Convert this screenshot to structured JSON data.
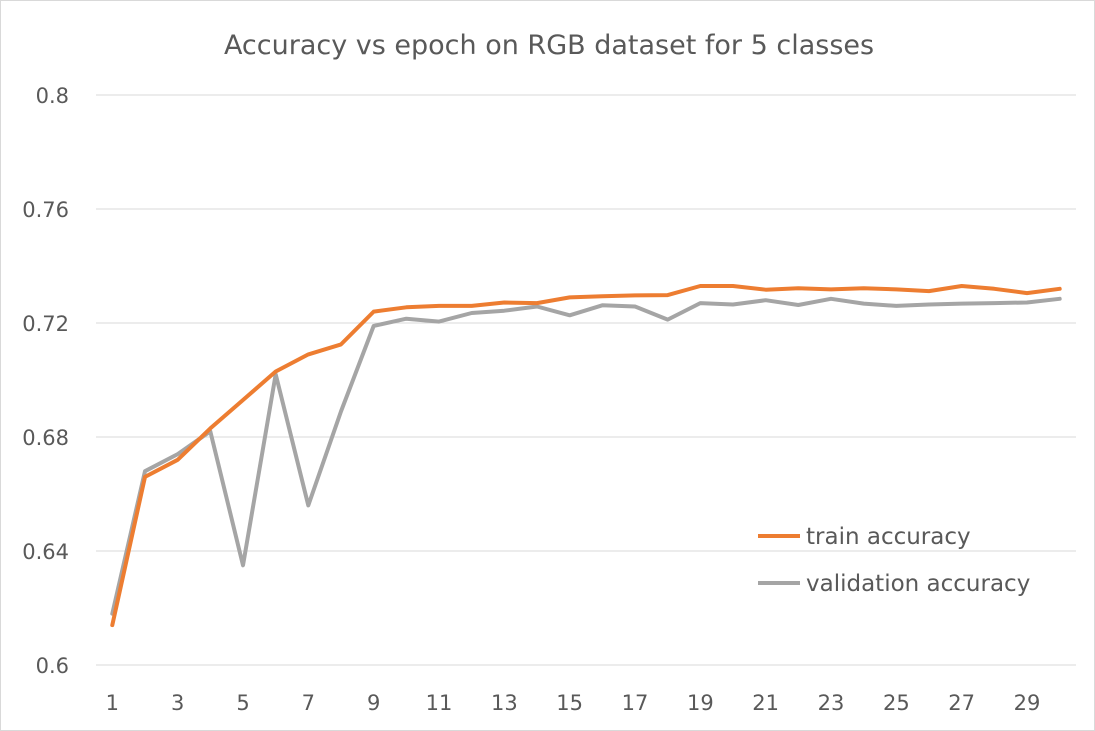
{
  "chart_data": {
    "type": "line",
    "title": "Accuracy vs epoch on RGB dataset for 5 classes",
    "xlabel": "",
    "ylabel": "",
    "x": [
      1,
      2,
      3,
      4,
      5,
      6,
      7,
      8,
      9,
      10,
      11,
      12,
      13,
      14,
      15,
      16,
      17,
      18,
      19,
      20,
      21,
      22,
      23,
      24,
      25,
      26,
      27,
      28,
      29,
      30
    ],
    "x_tick_labels": [
      "1",
      "3",
      "5",
      "7",
      "9",
      "11",
      "13",
      "15",
      "17",
      "19",
      "21",
      "23",
      "25",
      "27",
      "29"
    ],
    "ylim": [
      0.6,
      0.8
    ],
    "y_tick_labels": [
      "0.6",
      "0.64",
      "0.68",
      "0.72",
      "0.76",
      "0.8"
    ],
    "grid": "horizontal",
    "legend_position": "bottom-right",
    "series": [
      {
        "name": "train accuracy",
        "color": "#ED7D31",
        "values": [
          0.614,
          0.666,
          0.672,
          0.683,
          0.693,
          0.703,
          0.709,
          0.7125,
          0.724,
          0.7255,
          0.726,
          0.726,
          0.7272,
          0.727,
          0.729,
          0.7294,
          0.7297,
          0.7298,
          0.733,
          0.733,
          0.7317,
          0.7322,
          0.7318,
          0.7322,
          0.7318,
          0.7312,
          0.733,
          0.732,
          0.7305,
          0.732
        ]
      },
      {
        "name": "validation accuracy",
        "color": "#A5A5A5",
        "values": [
          0.618,
          0.668,
          0.674,
          0.682,
          0.635,
          0.702,
          0.656,
          0.689,
          0.719,
          0.7215,
          0.7205,
          0.7235,
          0.7243,
          0.7258,
          0.7227,
          0.7262,
          0.7258,
          0.7212,
          0.727,
          0.7265,
          0.728,
          0.7263,
          0.7285,
          0.7268,
          0.726,
          0.7265,
          0.7268,
          0.727,
          0.7272,
          0.7285
        ]
      }
    ]
  }
}
